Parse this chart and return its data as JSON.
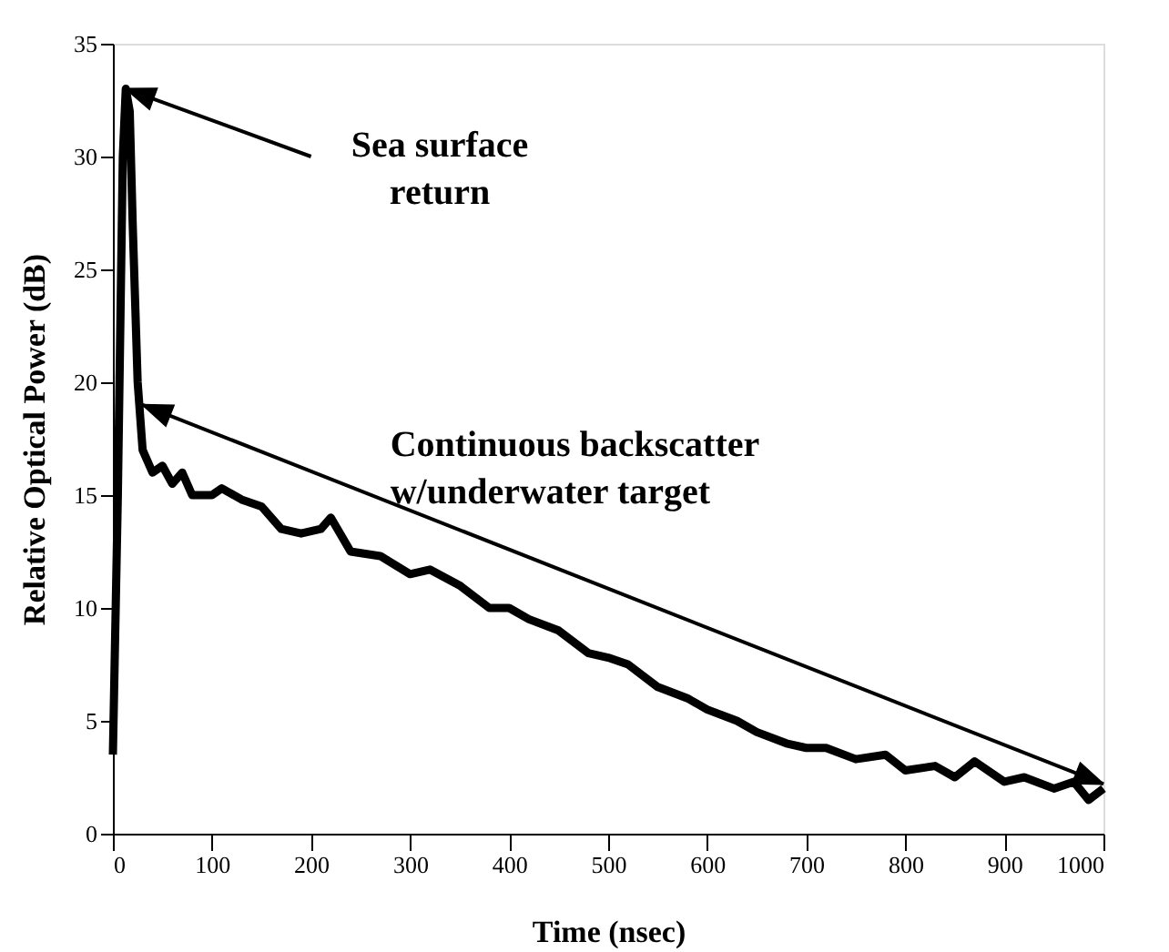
{
  "chart_data": {
    "type": "line",
    "xlabel": "Time (nsec)",
    "ylabel": "Relative Optical Power (dB)",
    "x": [
      0,
      5,
      10,
      13,
      17,
      20,
      25,
      30,
      40,
      50,
      60,
      70,
      80,
      100,
      110,
      130,
      150,
      170,
      190,
      210,
      220,
      240,
      270,
      300,
      320,
      350,
      380,
      400,
      420,
      450,
      480,
      500,
      520,
      550,
      580,
      600,
      630,
      650,
      680,
      700,
      720,
      750,
      780,
      800,
      830,
      850,
      870,
      900,
      920,
      950,
      970,
      985,
      1000
    ],
    "series": [
      {
        "color": "#000000",
        "values": [
          3.5,
          15,
          30,
          33,
          32,
          27,
          20,
          17,
          16,
          16.3,
          15.5,
          16,
          15,
          15,
          15.3,
          14.8,
          14.5,
          13.5,
          13.3,
          13.5,
          14,
          12.5,
          12.3,
          11.5,
          11.7,
          11,
          10,
          10,
          9.5,
          9,
          8,
          7.8,
          7.5,
          6.5,
          6,
          5.5,
          5,
          4.5,
          4,
          3.8,
          3.8,
          3.3,
          3.5,
          2.8,
          3,
          2.5,
          3.2,
          2.3,
          2.5,
          2,
          2.3,
          1.5,
          2
        ]
      }
    ],
    "xlim": [
      0,
      1000
    ],
    "ylim": [
      0,
      35
    ],
    "xticks": [
      0,
      100,
      200,
      300,
      400,
      500,
      600,
      700,
      800,
      900,
      1000
    ],
    "yticks": [
      0,
      5,
      10,
      15,
      20,
      25,
      30,
      35
    ],
    "grid": false,
    "marker": "none",
    "line_style": "solid",
    "legend": false,
    "annotations": [
      {
        "text": "Sea surface\nreturn",
        "x": 13,
        "y": 33
      },
      "Continuous backscatter\nw/underwater target"
    ]
  }
}
